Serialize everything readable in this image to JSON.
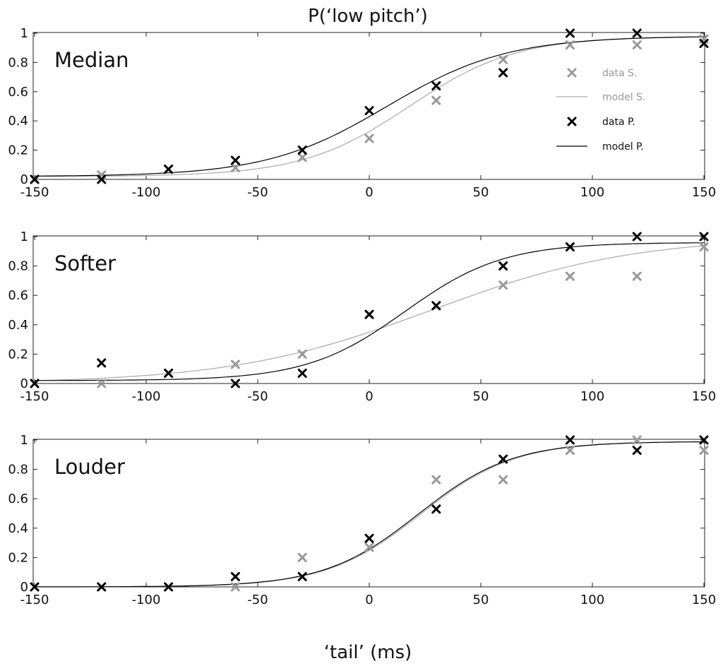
{
  "chart_data": {
    "type": "scatter",
    "title": "P(‘low pitch’)",
    "xlabel": "‘tail’ (ms)",
    "xlim": [
      -150,
      150
    ],
    "ylim": [
      0,
      1
    ],
    "xticks": [
      -150,
      -100,
      -50,
      0,
      50,
      100,
      150
    ],
    "yticks": [
      0,
      0.2,
      0.4,
      0.6,
      0.8,
      1
    ],
    "colors": {
      "S": "#999999",
      "P": "#000000",
      "model_S": "#aaaaaa",
      "model_P": "#000000"
    },
    "legend": {
      "placement": "right, inside top panel",
      "entries": [
        {
          "label": "data S.",
          "marker": "x",
          "color": "#999999"
        },
        {
          "label": "model S.",
          "marker": "line",
          "color": "#aaaaaa"
        },
        {
          "label": "data P.",
          "marker": "x",
          "color": "#000000"
        },
        {
          "label": "model P.",
          "marker": "line",
          "color": "#000000"
        }
      ]
    },
    "panels": [
      {
        "label": "Median",
        "x": [
          -150,
          -120,
          -90,
          -60,
          -30,
          0,
          30,
          60,
          90,
          120,
          150
        ],
        "data_S": [
          0.0,
          0.03,
          0.07,
          0.08,
          0.15,
          0.28,
          0.54,
          0.82,
          0.92,
          0.92,
          0.96
        ],
        "data_P": [
          0.0,
          0.0,
          0.07,
          0.13,
          0.2,
          0.47,
          0.64,
          0.73,
          1.0,
          1.0,
          0.93
        ],
        "model_S": {
          "mu": 18,
          "s": 24,
          "lo": 0.02,
          "hi": 0.98
        },
        "model_P": {
          "mu": 8,
          "s": 27,
          "lo": 0.02,
          "hi": 0.98
        }
      },
      {
        "label": "Softer",
        "x": [
          -150,
          -120,
          -90,
          -60,
          -30,
          0,
          30,
          60,
          90,
          120,
          150
        ],
        "data_S": [
          0.0,
          0.0,
          0.07,
          0.13,
          0.2,
          0.47,
          0.53,
          0.67,
          0.73,
          0.73,
          0.93
        ],
        "data_P": [
          0.0,
          0.14,
          0.07,
          0.0,
          0.07,
          0.47,
          0.53,
          0.8,
          0.93,
          1.0,
          1.0
        ],
        "model_S": {
          "mu": 28,
          "s": 45,
          "lo": 0.0,
          "hi": 1.0
        },
        "model_P": {
          "mu": 16,
          "s": 22,
          "lo": 0.02,
          "hi": 0.96
        }
      },
      {
        "label": "Louder",
        "x": [
          -150,
          -120,
          -90,
          -60,
          -30,
          0,
          30,
          60,
          90,
          120,
          150
        ],
        "data_S": [
          0.0,
          0.0,
          0.0,
          0.0,
          0.2,
          0.27,
          0.73,
          0.73,
          0.93,
          1.0,
          0.93
        ],
        "data_P": [
          0.0,
          0.0,
          0.0,
          0.07,
          0.07,
          0.33,
          0.53,
          0.87,
          1.0,
          0.93,
          1.0
        ],
        "model_S": {
          "mu": 23,
          "s": 21,
          "lo": 0.0,
          "hi": 0.99
        },
        "model_P": {
          "mu": 22,
          "s": 21,
          "lo": 0.0,
          "hi": 0.99
        }
      }
    ]
  }
}
